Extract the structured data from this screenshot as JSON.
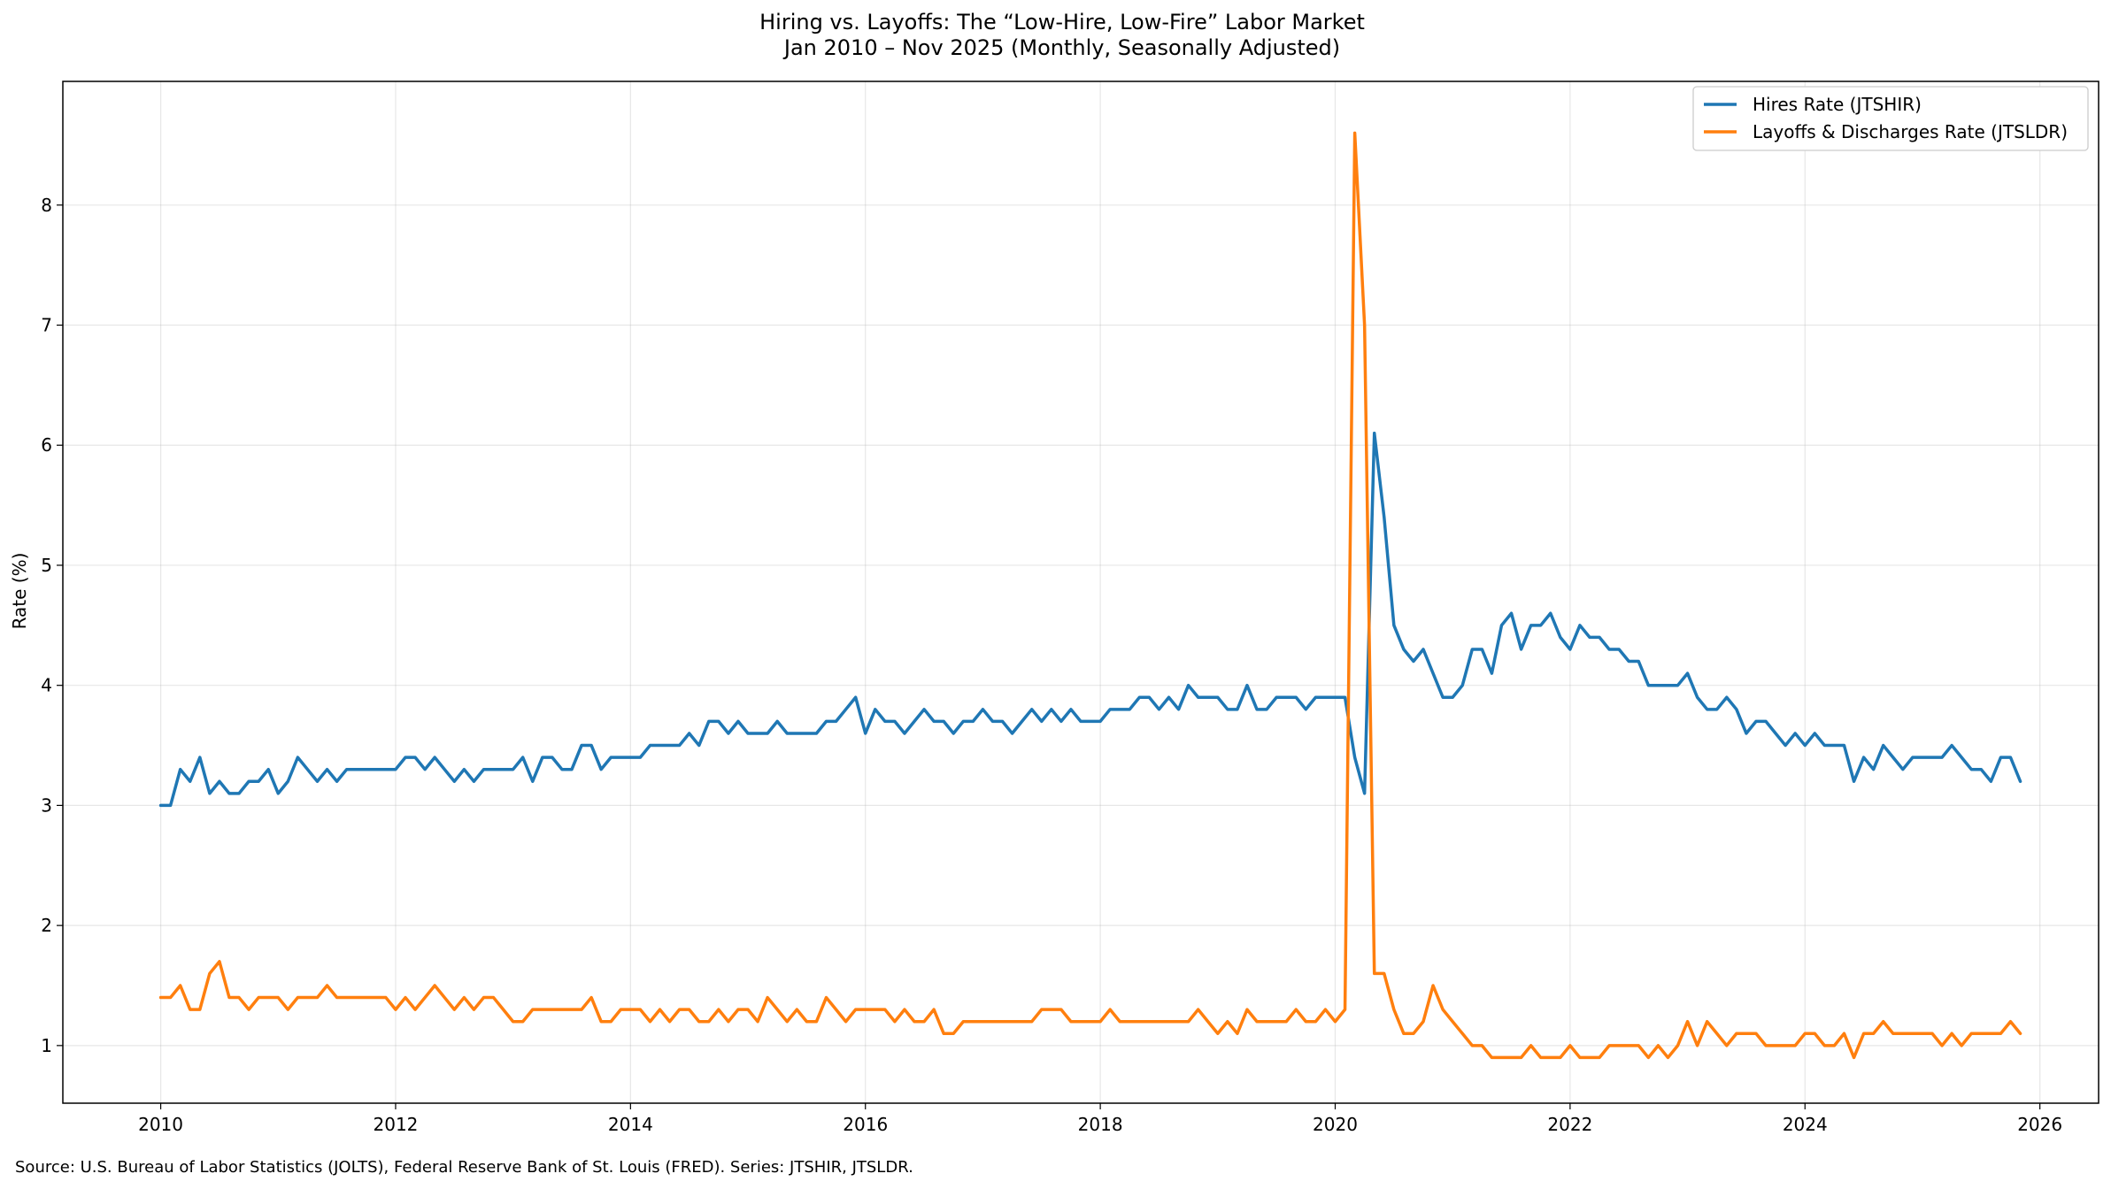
{
  "chart_data": {
    "type": "line",
    "title": "Hiring vs. Layoffs: The “Low-Hire, Low-Fire” Labor Market",
    "subtitle": "Jan 2010 – Nov 2025 (Monthly, Seasonally Adjusted)",
    "xlabel": "",
    "ylabel": "Rate (%)",
    "x_start": "2010-01",
    "x_end": "2025-11",
    "xlim": [
      "2009-03",
      "2026-07"
    ],
    "ylim": [
      0.52,
      9.03
    ],
    "x_ticks": [
      "2010",
      "2012",
      "2014",
      "2016",
      "2018",
      "2020",
      "2022",
      "2024",
      "2026"
    ],
    "y_ticks": [
      "1",
      "2",
      "3",
      "4",
      "5",
      "6",
      "7",
      "8"
    ],
    "grid": true,
    "legend_position": "top-right",
    "colors": {
      "hires": "#1f77b4",
      "layoffs": "#ff7f0e"
    },
    "source": "Source: U.S. Bureau of Labor Statistics (JOLTS), Federal Reserve Bank of St. Louis (FRED). Series: JTSHIR, JTSLDR.",
    "series": [
      {
        "name": "Hires Rate (JTSHIR)",
        "values": [
          3.0,
          3.0,
          3.3,
          3.2,
          3.4,
          3.1,
          3.2,
          3.1,
          3.1,
          3.2,
          3.2,
          3.3,
          3.1,
          3.2,
          3.4,
          3.3,
          3.2,
          3.3,
          3.2,
          3.3,
          3.3,
          3.3,
          3.3,
          3.3,
          3.3,
          3.4,
          3.4,
          3.3,
          3.4,
          3.3,
          3.2,
          3.3,
          3.2,
          3.3,
          3.3,
          3.3,
          3.3,
          3.4,
          3.2,
          3.4,
          3.4,
          3.3,
          3.3,
          3.5,
          3.5,
          3.3,
          3.4,
          3.4,
          3.4,
          3.4,
          3.5,
          3.5,
          3.5,
          3.5,
          3.6,
          3.5,
          3.7,
          3.7,
          3.6,
          3.7,
          3.6,
          3.6,
          3.6,
          3.7,
          3.6,
          3.6,
          3.6,
          3.6,
          3.7,
          3.7,
          3.8,
          3.9,
          3.6,
          3.8,
          3.7,
          3.7,
          3.6,
          3.7,
          3.8,
          3.7,
          3.7,
          3.6,
          3.7,
          3.7,
          3.8,
          3.7,
          3.7,
          3.6,
          3.7,
          3.8,
          3.7,
          3.8,
          3.7,
          3.8,
          3.7,
          3.7,
          3.7,
          3.8,
          3.8,
          3.8,
          3.9,
          3.9,
          3.8,
          3.9,
          3.8,
          4.0,
          3.9,
          3.9,
          3.9,
          3.8,
          3.8,
          4.0,
          3.8,
          3.8,
          3.9,
          3.9,
          3.9,
          3.8,
          3.9,
          3.9,
          3.9,
          3.9,
          3.4,
          3.1,
          6.1,
          5.4,
          4.5,
          4.3,
          4.2,
          4.3,
          4.1,
          3.9,
          3.9,
          4.0,
          4.3,
          4.3,
          4.1,
          4.5,
          4.6,
          4.3,
          4.5,
          4.5,
          4.6,
          4.4,
          4.3,
          4.5,
          4.4,
          4.4,
          4.3,
          4.3,
          4.2,
          4.2,
          4.0,
          4.0,
          4.0,
          4.0,
          4.1,
          3.9,
          3.8,
          3.8,
          3.9,
          3.8,
          3.6,
          3.7,
          3.7,
          3.6,
          3.5,
          3.6,
          3.5,
          3.6,
          3.5,
          3.5,
          3.5,
          3.2,
          3.4,
          3.3,
          3.5,
          3.4,
          3.3,
          3.4,
          3.4,
          3.4,
          3.4,
          3.5,
          3.4,
          3.3,
          3.3,
          3.2,
          3.4,
          3.4,
          3.2
        ]
      },
      {
        "name": "Layoffs & Discharges Rate (JTSLDR)",
        "values": [
          1.4,
          1.4,
          1.5,
          1.3,
          1.3,
          1.6,
          1.7,
          1.4,
          1.4,
          1.3,
          1.4,
          1.4,
          1.4,
          1.3,
          1.4,
          1.4,
          1.4,
          1.5,
          1.4,
          1.4,
          1.4,
          1.4,
          1.4,
          1.4,
          1.3,
          1.4,
          1.3,
          1.4,
          1.5,
          1.4,
          1.3,
          1.4,
          1.3,
          1.4,
          1.4,
          1.3,
          1.2,
          1.2,
          1.3,
          1.3,
          1.3,
          1.3,
          1.3,
          1.3,
          1.4,
          1.2,
          1.2,
          1.3,
          1.3,
          1.3,
          1.2,
          1.3,
          1.2,
          1.3,
          1.3,
          1.2,
          1.2,
          1.3,
          1.2,
          1.3,
          1.3,
          1.2,
          1.4,
          1.3,
          1.2,
          1.3,
          1.2,
          1.2,
          1.4,
          1.3,
          1.2,
          1.3,
          1.3,
          1.3,
          1.3,
          1.2,
          1.3,
          1.2,
          1.2,
          1.3,
          1.1,
          1.1,
          1.2,
          1.2,
          1.2,
          1.2,
          1.2,
          1.2,
          1.2,
          1.2,
          1.3,
          1.3,
          1.3,
          1.2,
          1.2,
          1.2,
          1.2,
          1.3,
          1.2,
          1.2,
          1.2,
          1.2,
          1.2,
          1.2,
          1.2,
          1.2,
          1.3,
          1.2,
          1.1,
          1.2,
          1.1,
          1.3,
          1.2,
          1.2,
          1.2,
          1.2,
          1.3,
          1.2,
          1.2,
          1.3,
          1.2,
          1.3,
          8.6,
          7.0,
          1.6,
          1.6,
          1.3,
          1.1,
          1.1,
          1.2,
          1.5,
          1.3,
          1.2,
          1.1,
          1.0,
          1.0,
          0.9,
          0.9,
          0.9,
          0.9,
          1.0,
          0.9,
          0.9,
          0.9,
          1.0,
          0.9,
          0.9,
          0.9,
          1.0,
          1.0,
          1.0,
          1.0,
          0.9,
          1.0,
          0.9,
          1.0,
          1.2,
          1.0,
          1.2,
          1.1,
          1.0,
          1.1,
          1.1,
          1.1,
          1.0,
          1.0,
          1.0,
          1.0,
          1.1,
          1.1,
          1.0,
          1.0,
          1.1,
          0.9,
          1.1,
          1.1,
          1.2,
          1.1,
          1.1,
          1.1,
          1.1,
          1.1,
          1.0,
          1.1,
          1.0,
          1.1,
          1.1,
          1.1,
          1.1,
          1.2,
          1.1
        ]
      }
    ]
  }
}
